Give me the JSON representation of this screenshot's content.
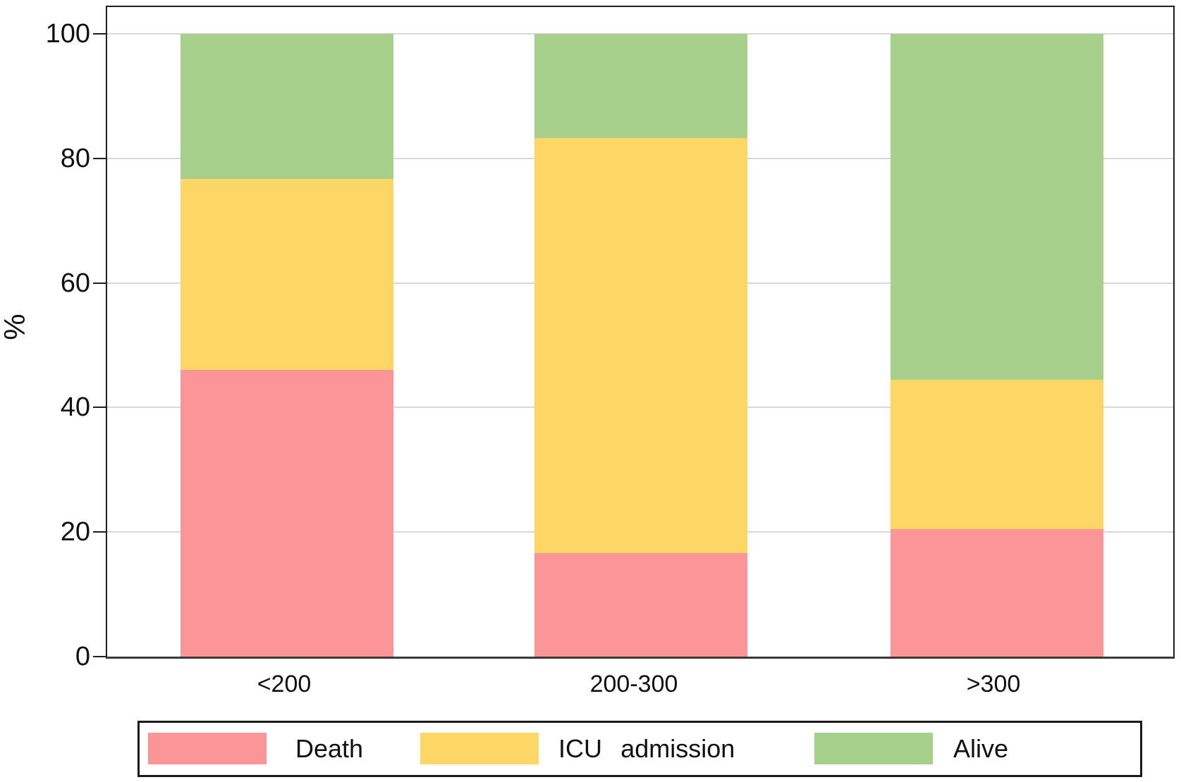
{
  "chart_data": {
    "type": "bar",
    "stacked": true,
    "orientation": "vertical",
    "title": "",
    "xlabel": "",
    "ylabel": "%",
    "categories": [
      "<200",
      "200-300",
      ">300"
    ],
    "series": [
      {
        "name": "Death",
        "color": "#fc9597",
        "values": [
          46.0,
          16.6,
          20.5
        ]
      },
      {
        "name": "ICU admission",
        "color": "#fdd765",
        "values": [
          30.7,
          66.7,
          24.0
        ]
      },
      {
        "name": "Alive",
        "color": "#a8d08d",
        "values": [
          23.3,
          16.7,
          55.5
        ]
      }
    ],
    "y_ticks": [
      0,
      20,
      40,
      60,
      80,
      100
    ],
    "ylim": [
      0,
      104.5
    ],
    "grid": "horizontal",
    "gridline_color": "#d9d9d9",
    "frame_color": "#1f1f1f",
    "legend_position": "bottom"
  }
}
